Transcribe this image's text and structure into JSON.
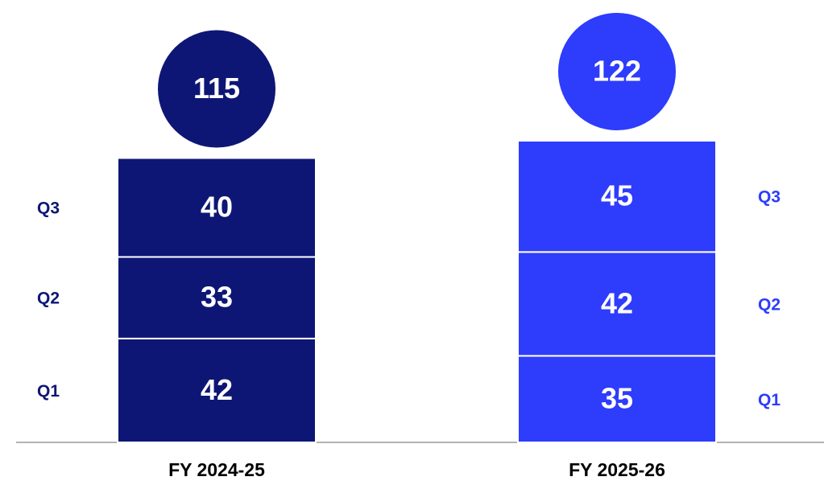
{
  "chart_data": {
    "type": "stacked_bar",
    "categories": [
      "FY 2024-25",
      "FY 2025-26"
    ],
    "category_colors": [
      "#0e1675",
      "#2e3cfc"
    ],
    "series": [
      {
        "name": "Q1",
        "values": [
          42,
          35
        ]
      },
      {
        "name": "Q2",
        "values": [
          33,
          42
        ]
      },
      {
        "name": "Q3",
        "values": [
          40,
          45
        ]
      }
    ],
    "totals": [
      115,
      122
    ]
  }
}
